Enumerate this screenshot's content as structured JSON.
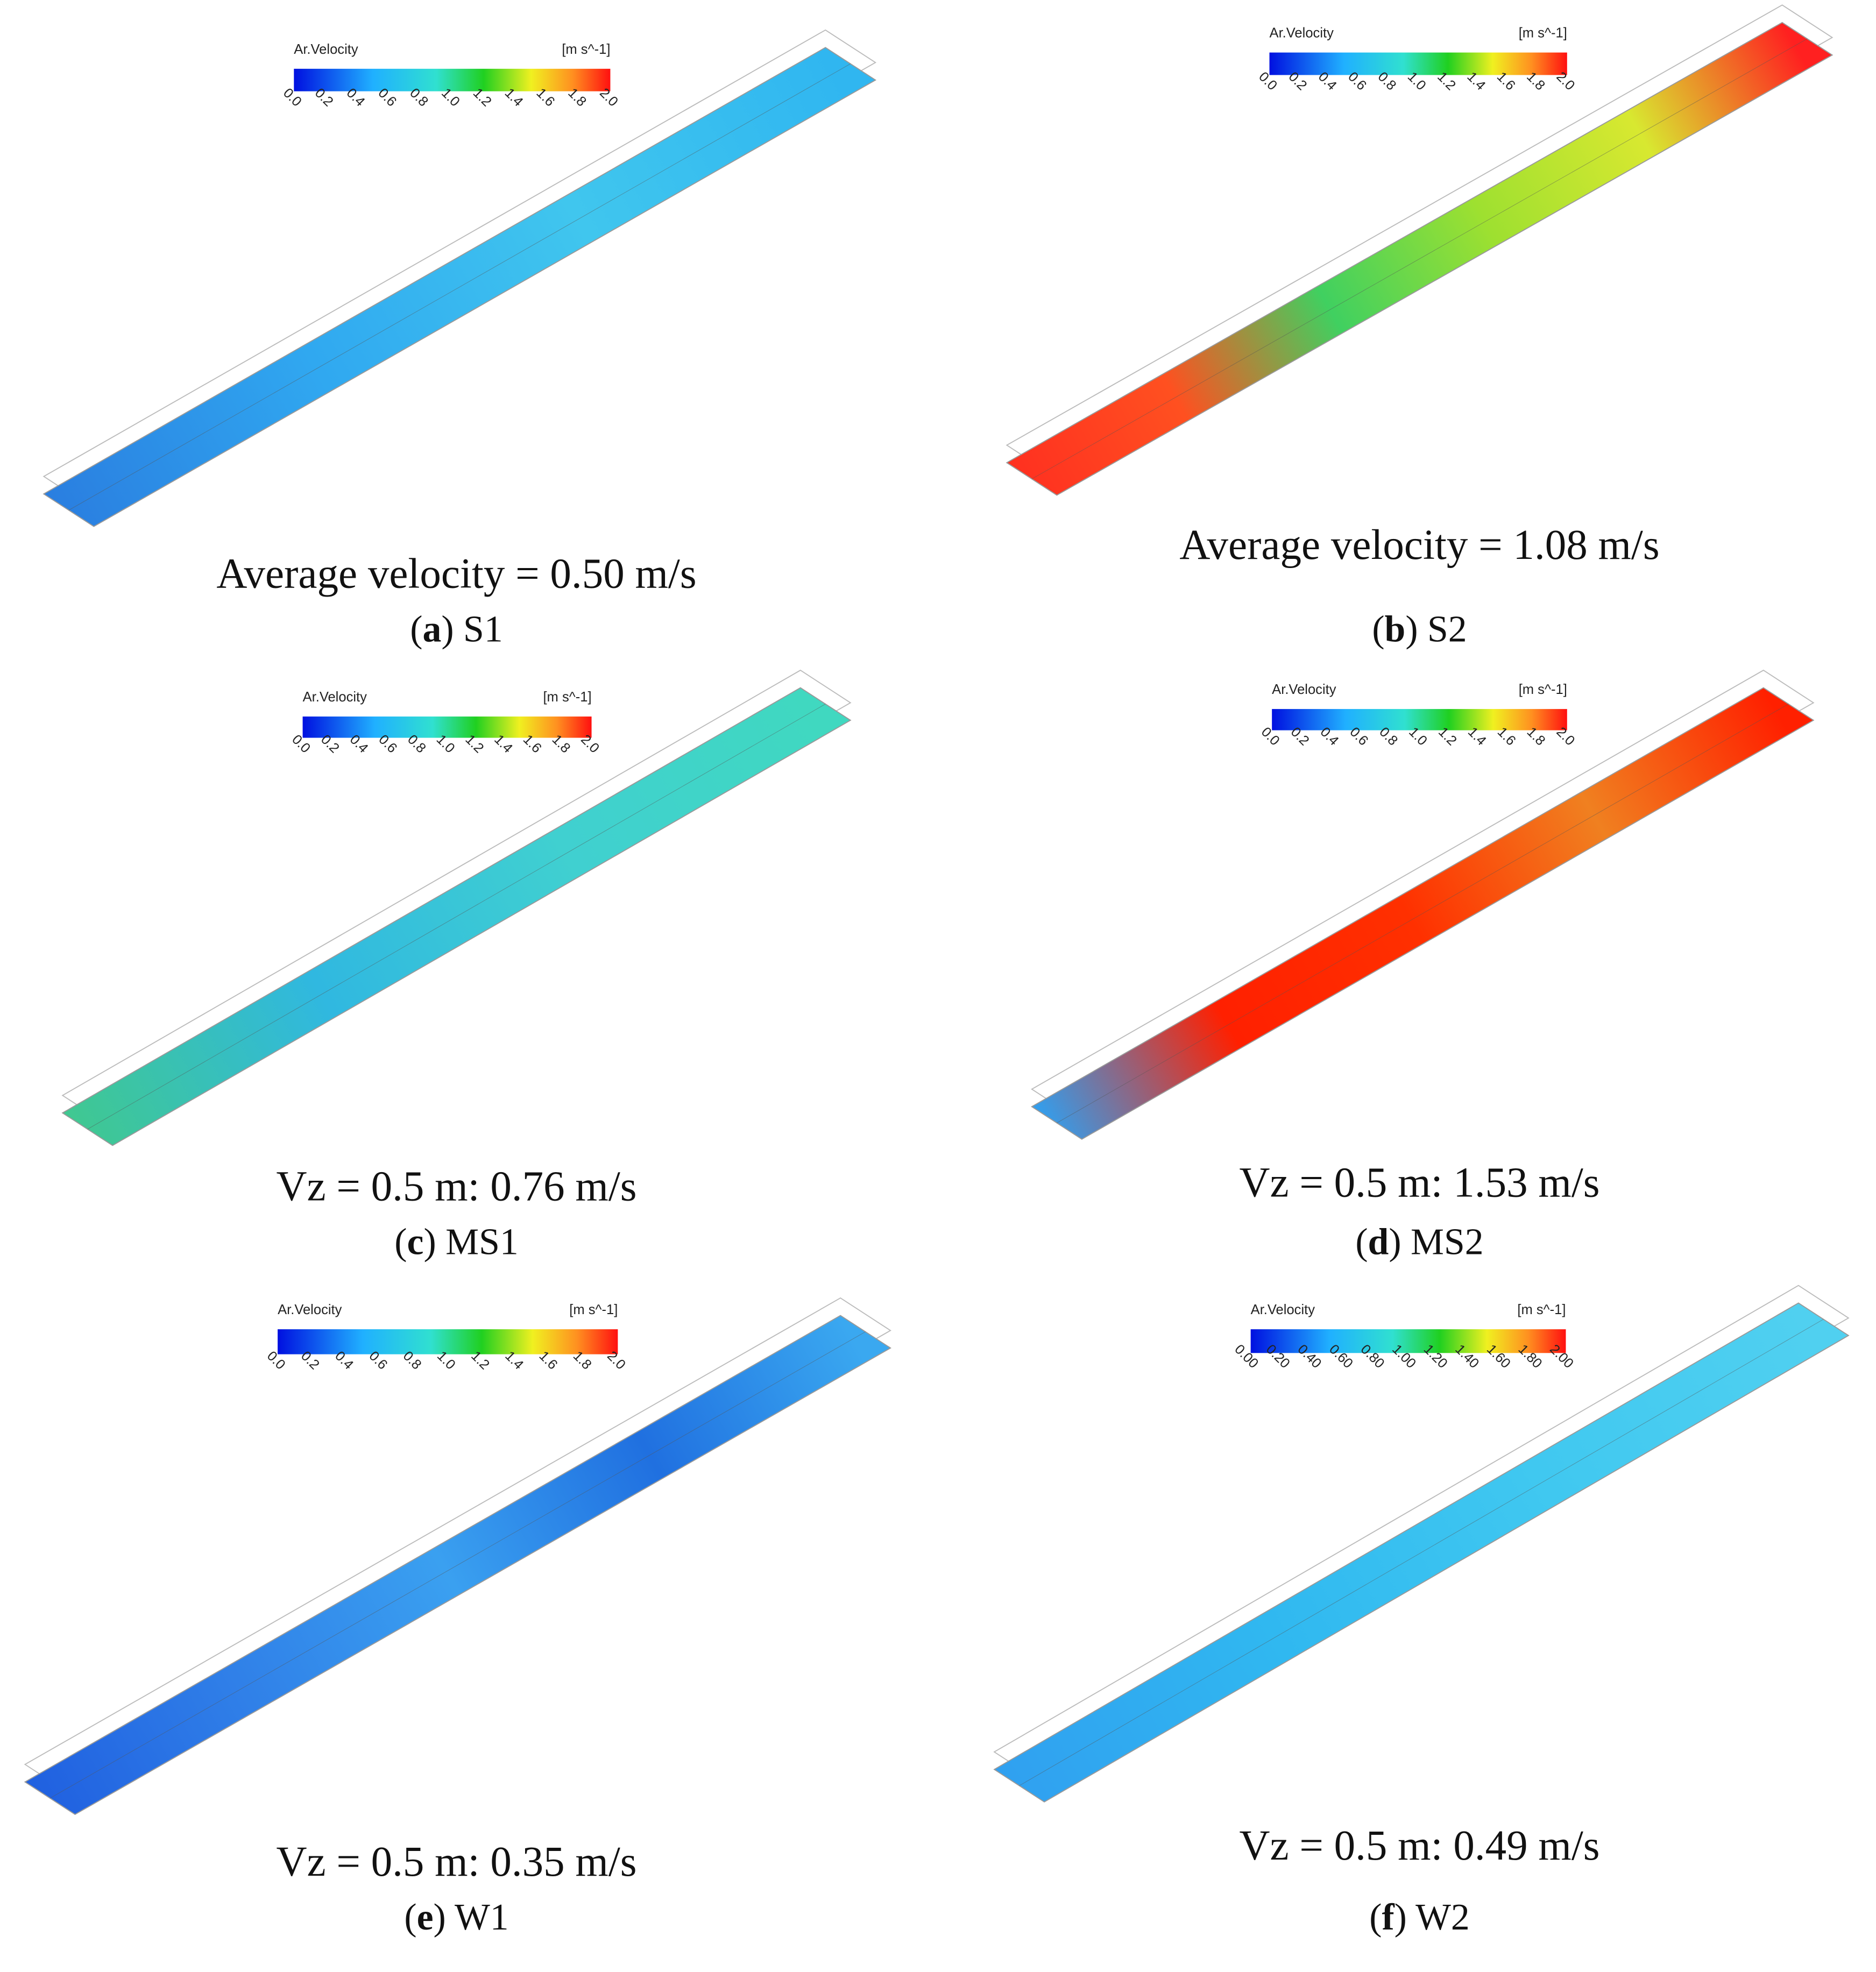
{
  "panels": [
    {
      "colorbar": {
        "title": "Ar.Velocity",
        "unit": "[m s^-1]",
        "ticks": [
          "0.0",
          "0.2",
          "0.4",
          "0.6",
          "0.8",
          "1.0",
          "1.2",
          "1.4",
          "1.6",
          "1.8",
          "2.0"
        ]
      },
      "caption": "Average velocity = 0.50 m/s",
      "label": [
        "(",
        "a",
        ") S1"
      ]
    },
    {
      "colorbar": {
        "title": "Ar.Velocity",
        "unit": "[m s^-1]",
        "ticks": [
          "0.0",
          "0.2",
          "0.4",
          "0.6",
          "0.8",
          "1.0",
          "1.2",
          "1.4",
          "1.6",
          "1.8",
          "2.0"
        ]
      },
      "caption": "Average velocity = 1.08 m/s",
      "label": [
        "(",
        "b",
        ") S2"
      ]
    },
    {
      "colorbar": {
        "title": "Ar.Velocity",
        "unit": "[m s^-1]",
        "ticks": [
          "0.0",
          "0.2",
          "0.4",
          "0.6",
          "0.8",
          "1.0",
          "1.2",
          "1.4",
          "1.6",
          "1.8",
          "2.0"
        ]
      },
      "caption": "Vz = 0.5 m: 0.76 m/s",
      "label": [
        "(",
        "c",
        ") MS1"
      ]
    },
    {
      "colorbar": {
        "title": "Ar.Velocity",
        "unit": "[m s^-1]",
        "ticks": [
          "0.0",
          "0.2",
          "0.4",
          "0.6",
          "0.8",
          "1.0",
          "1.2",
          "1.4",
          "1.6",
          "1.8",
          "2.0"
        ]
      },
      "caption": "Vz = 0.5 m: 1.53 m/s",
      "label": [
        "(",
        "d",
        ") MS2"
      ]
    },
    {
      "colorbar": {
        "title": "Ar.Velocity",
        "unit": "[m s^-1]",
        "ticks": [
          "0.0",
          "0.2",
          "0.4",
          "0.6",
          "0.8",
          "1.0",
          "1.2",
          "1.4",
          "1.6",
          "1.8",
          "2.0"
        ]
      },
      "caption": "Vz = 0.5 m: 0.35 m/s",
      "label": [
        "(",
        "e",
        ") W1"
      ]
    },
    {
      "colorbar": {
        "title": "Ar.Velocity",
        "unit": "[m s^-1]",
        "ticks": [
          "0.00",
          "0.20",
          "0.40",
          "0.60",
          "0.80",
          "1.00",
          "1.20",
          "1.40",
          "1.60",
          "1.80",
          "2.00"
        ]
      },
      "caption": "Vz = 0.5 m: 0.49 m/s",
      "label": [
        "(",
        "f",
        ") W2"
      ]
    }
  ]
}
